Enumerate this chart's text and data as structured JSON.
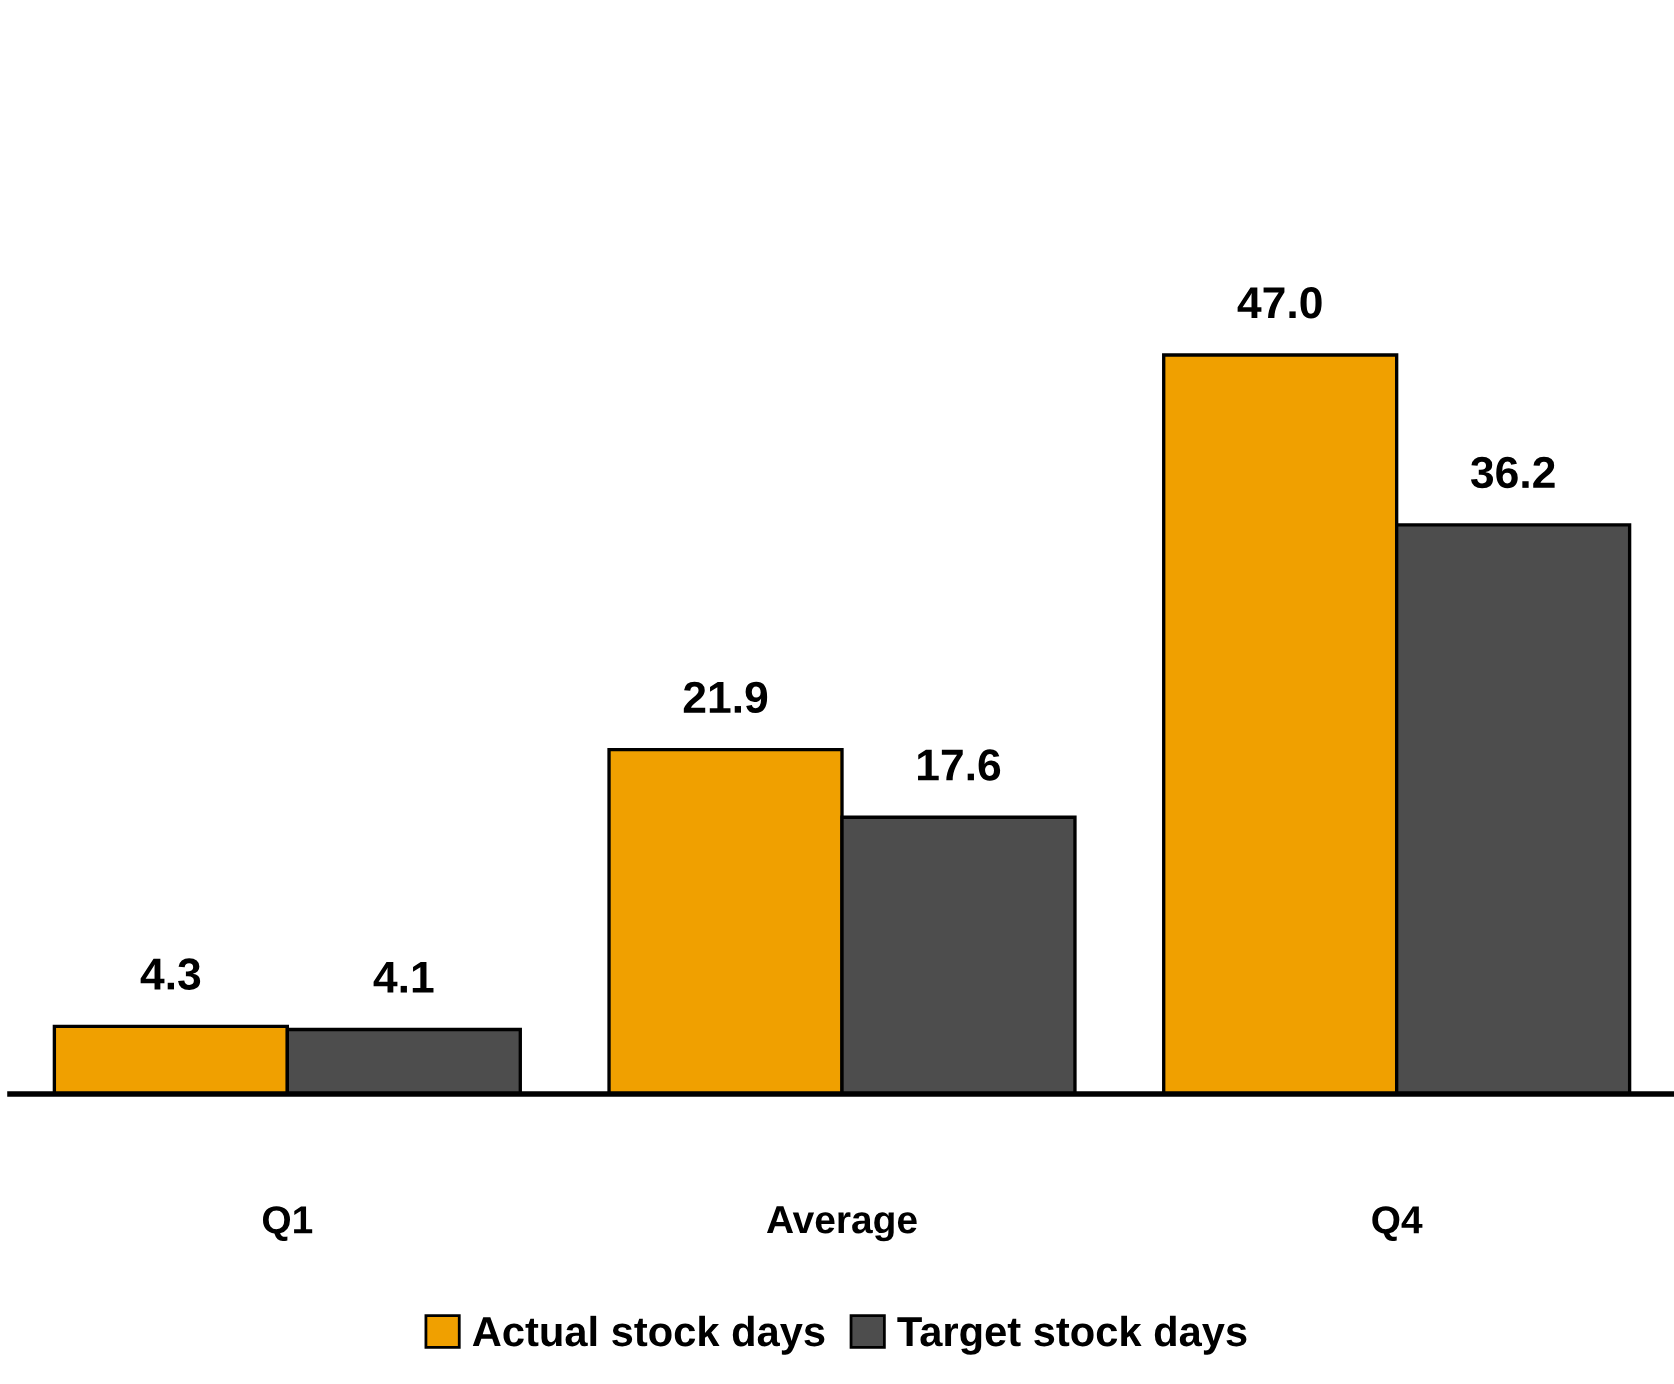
{
  "chart_data": {
    "type": "bar",
    "categories": [
      "Q1",
      "Average",
      "Q4"
    ],
    "series": [
      {
        "name": "Actual stock days",
        "color": "#f0a000",
        "values": [
          4.3,
          21.9,
          47.0
        ],
        "value_labels": [
          "4.3",
          "21.9",
          "47.0"
        ]
      },
      {
        "name": "Target stock days",
        "color": "#4d4d4d",
        "values": [
          4.1,
          17.6,
          36.2
        ],
        "value_labels": [
          "4.1",
          "17.6",
          "36.2"
        ]
      }
    ],
    "legend": "bottom",
    "grid": false,
    "tick_labels": "x"
  }
}
